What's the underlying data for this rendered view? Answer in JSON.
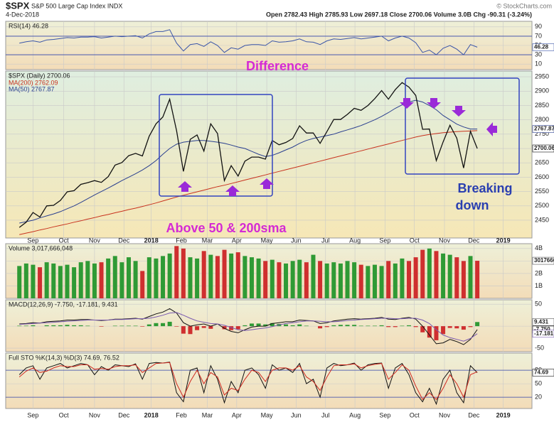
{
  "header": {
    "symbol": "$SPX",
    "name": "S&P 500 Large Cap Index INDX",
    "date": "4-Dec-2018",
    "quote": "Open 2782.43  High 2785.93  Low 2697.18  Close 2700.06  Volume 3.0B  Chg -90.31 (-3.24%)",
    "credit": "© StockCharts.com"
  },
  "chart_data": [
    {
      "type": "line",
      "title": "RSI(14) 46.28",
      "ylim": [
        -2,
        102
      ],
      "yticks": [
        10,
        30,
        50,
        70,
        90
      ],
      "bands": [
        30,
        70
      ],
      "series": [
        {
          "color": "#3a55a8",
          "last_label": "46.28",
          "values": [
            55,
            58,
            60,
            57,
            62,
            63,
            65,
            67,
            66,
            68,
            68,
            69,
            66,
            68,
            70,
            69,
            70,
            71,
            66,
            75,
            80,
            80,
            84,
            55,
            38,
            52,
            54,
            48,
            58,
            50,
            35,
            45,
            42,
            50,
            52,
            52,
            50,
            60,
            57,
            58,
            60,
            64,
            58,
            57,
            52,
            60,
            64,
            63,
            65,
            67,
            64,
            66,
            68,
            70,
            60,
            66,
            70,
            66,
            56,
            35,
            40,
            30,
            44,
            50,
            42,
            30,
            52,
            46.28
          ]
        }
      ]
    },
    {
      "type": "line",
      "title": "$SPX (Daily) 2700.06",
      "ylim": [
        2388,
        2970
      ],
      "yticks": [
        2450,
        2500,
        2550,
        2600,
        2650,
        2700,
        2750,
        2800,
        2850,
        2900,
        2950
      ],
      "xlim": [
        -2,
        75
      ],
      "xticks": [
        {
          "value": 2,
          "label": "Sep"
        },
        {
          "value": 6.5,
          "label": "Oct"
        },
        {
          "value": 11,
          "label": "Nov"
        },
        {
          "value": 15.3,
          "label": "Dec"
        },
        {
          "value": 19.3,
          "label": "2018"
        },
        {
          "value": 23.7,
          "label": "Feb"
        },
        {
          "value": 27.5,
          "label": "Mar"
        },
        {
          "value": 31.8,
          "label": "Apr"
        },
        {
          "value": 36.2,
          "label": "May"
        },
        {
          "value": 40.5,
          "label": "Jun"
        },
        {
          "value": 44.8,
          "label": "Jul"
        },
        {
          "value": 49.1,
          "label": "Aug"
        },
        {
          "value": 53.5,
          "label": "Sep"
        },
        {
          "value": 57.8,
          "label": "Oct"
        },
        {
          "value": 62.2,
          "label": "Nov"
        },
        {
          "value": 66.5,
          "label": "Dec"
        },
        {
          "value": 70.8,
          "label": "2019"
        }
      ],
      "annotations": [
        "Difference",
        "Above 50 & 200sma",
        "Breaking",
        "down"
      ],
      "series": [
        {
          "name": "MA(200) 2762.09",
          "color": "#c8321e",
          "values": [
            2400,
            2405,
            2410,
            2416,
            2421,
            2427,
            2432,
            2437,
            2443,
            2448,
            2454,
            2459,
            2465,
            2470,
            2476,
            2481,
            2487,
            2492,
            2498,
            2504,
            2510,
            2517,
            2524,
            2531,
            2537,
            2543,
            2549,
            2555,
            2561,
            2567,
            2572,
            2578,
            2584,
            2590,
            2596,
            2602,
            2608,
            2614,
            2620,
            2626,
            2632,
            2638,
            2644,
            2650,
            2656,
            2662,
            2668,
            2674,
            2680,
            2686,
            2692,
            2698,
            2704,
            2710,
            2716,
            2722,
            2728,
            2734,
            2740,
            2745,
            2749,
            2752,
            2755,
            2757,
            2759,
            2760,
            2761,
            2762.09
          ]
        },
        {
          "name": "MA(50) 2767.87",
          "color": "#2a3f8f",
          "last_label": "2767.87",
          "values": [
            2440,
            2445,
            2450,
            2458,
            2465,
            2472,
            2480,
            2490,
            2500,
            2512,
            2525,
            2538,
            2550,
            2562,
            2575,
            2588,
            2600,
            2612,
            2625,
            2640,
            2658,
            2680,
            2700,
            2715,
            2722,
            2725,
            2728,
            2728,
            2725,
            2722,
            2718,
            2712,
            2705,
            2700,
            2690,
            2680,
            2672,
            2676,
            2685,
            2695,
            2705,
            2718,
            2728,
            2735,
            2740,
            2745,
            2750,
            2758,
            2765,
            2772,
            2780,
            2790,
            2800,
            2812,
            2825,
            2840,
            2852,
            2862,
            2868,
            2862,
            2850,
            2835,
            2815,
            2800,
            2785,
            2775,
            2768,
            2767.87
          ]
        },
        {
          "color": "#111111",
          "last_label": "2700.06",
          "values": [
            2425,
            2443,
            2477,
            2461,
            2500,
            2502,
            2519,
            2549,
            2553,
            2575,
            2581,
            2588,
            2582,
            2602,
            2642,
            2651,
            2675,
            2683,
            2674,
            2743,
            2786,
            2810,
            2872,
            2762,
            2620,
            2732,
            2747,
            2691,
            2786,
            2752,
            2588,
            2640,
            2604,
            2656,
            2670,
            2670,
            2663,
            2728,
            2713,
            2721,
            2735,
            2779,
            2754,
            2754,
            2718,
            2759,
            2801,
            2801,
            2819,
            2840,
            2833,
            2850,
            2874,
            2902,
            2872,
            2905,
            2930,
            2914,
            2885,
            2767,
            2768,
            2658,
            2723,
            2781,
            2736,
            2632,
            2760,
            2700.06
          ]
        }
      ]
    },
    {
      "type": "bar",
      "title": "Volume 3,017,666,048",
      "ylim": [
        0,
        4.39
      ],
      "yticks": [
        {
          "value": 1,
          "label": "1B"
        },
        {
          "value": 2,
          "label": "2B"
        },
        {
          "value": 3,
          "label": "3B"
        },
        {
          "value": 4,
          "label": "4B"
        }
      ],
      "up_color": "#2f9a35",
      "down_color": "#cf2f2f",
      "series": [
        {
          "last_label": "3017666048",
          "values": [
            2.6,
            2.8,
            2.7,
            2.5,
            2.9,
            2.8,
            2.6,
            2.7,
            2.5,
            2.9,
            3.0,
            2.8,
            2.9,
            3.2,
            3.4,
            2.9,
            3.3,
            3.0,
            2.2,
            3.3,
            3.2,
            3.4,
            3.6,
            4.2,
            4.0,
            3.3,
            3.2,
            3.8,
            3.5,
            3.4,
            3.9,
            3.6,
            3.7,
            3.4,
            3.3,
            3.2,
            3.0,
            3.1,
            2.9,
            2.8,
            3.0,
            3.1,
            2.9,
            3.5,
            3.0,
            2.8,
            2.9,
            2.8,
            3.0,
            2.9,
            2.7,
            2.6,
            2.7,
            2.6,
            3.0,
            2.8,
            3.2,
            3.0,
            3.3,
            3.9,
            4.0,
            3.8,
            3.6,
            3.5,
            3.3,
            3.0,
            3.4,
            3.017666048
          ]
        }
      ]
    },
    {
      "type": "line",
      "title": "MACD(12,26,9) -7.750, -17.181, 9.431",
      "ylim": [
        -58,
        60
      ],
      "yticks": [
        -50,
        0,
        50
      ],
      "up_color": "#2f9a35",
      "down_color": "#cf2f2f",
      "series": [
        {
          "kind": "histogram",
          "last_label": "9.431",
          "values": [
            1,
            1,
            2,
            0,
            2,
            2,
            2,
            3,
            2,
            2,
            1,
            0,
            -1,
            0,
            1,
            1,
            1,
            1,
            -1,
            4,
            7,
            7,
            10,
            -1,
            -17,
            -18,
            -9,
            -4,
            -6,
            0,
            -7,
            -9,
            -7,
            2,
            6,
            6,
            4,
            7,
            5,
            4,
            2,
            4,
            1,
            0,
            -5,
            -2,
            2,
            3,
            3,
            3,
            1,
            1,
            1,
            2,
            -2,
            -2,
            1,
            2,
            -2,
            -14,
            -26,
            -32,
            -18,
            -4,
            -5,
            -8,
            -2,
            9.431
          ]
        },
        {
          "color": "#111111",
          "last_label": "-7.750",
          "values": [
            5,
            6,
            8,
            7,
            10,
            11,
            12,
            14,
            14,
            15,
            15,
            14,
            13,
            14,
            16,
            16,
            17,
            18,
            16,
            22,
            28,
            32,
            40,
            30,
            8,
            0,
            3,
            5,
            0,
            5,
            -5,
            -12,
            -15,
            -8,
            -2,
            0,
            0,
            6,
            8,
            10,
            10,
            14,
            13,
            12,
            6,
            8,
            12,
            14,
            16,
            17,
            16,
            17,
            18,
            20,
            16,
            15,
            18,
            20,
            16,
            0,
            -20,
            -40,
            -38,
            -30,
            -35,
            -42,
            -30,
            -7.75
          ]
        },
        {
          "color": "#7a5ab0",
          "last_label": "-17.181",
          "values": [
            4,
            5,
            6,
            7,
            8,
            9,
            10,
            11,
            12,
            13,
            14,
            14,
            14,
            14,
            15,
            15,
            16,
            17,
            17,
            18,
            21,
            25,
            30,
            31,
            25,
            18,
            12,
            9,
            6,
            5,
            2,
            -3,
            -8,
            -10,
            -8,
            -6,
            -4,
            -1,
            3,
            6,
            8,
            10,
            12,
            12,
            11,
            10,
            10,
            11,
            13,
            14,
            15,
            16,
            17,
            18,
            18,
            17,
            17,
            18,
            18,
            14,
            6,
            -8,
            -20,
            -26,
            -30,
            -34,
            -28,
            -17.181
          ]
        }
      ]
    },
    {
      "type": "line",
      "title": "Full STO %K(14,3) %D(3) 74.69, 76.52",
      "ylim": [
        -5,
        118
      ],
      "yticks": [
        20,
        50,
        80
      ],
      "bands": [
        20,
        80
      ],
      "series": [
        {
          "color": "#111111",
          "last_label": "74.69",
          "values": [
            70,
            85,
            90,
            60,
            85,
            90,
            95,
            85,
            90,
            95,
            92,
            70,
            88,
            80,
            92,
            90,
            88,
            94,
            60,
            95,
            97,
            96,
            98,
            30,
            10,
            80,
            85,
            30,
            90,
            60,
            8,
            55,
            30,
            80,
            85,
            70,
            40,
            92,
            80,
            85,
            75,
            95,
            50,
            60,
            20,
            85,
            95,
            90,
            92,
            96,
            80,
            92,
            95,
            96,
            40,
            85,
            95,
            70,
            30,
            10,
            40,
            5,
            60,
            80,
            30,
            8,
            90,
            74.69
          ]
        },
        {
          "color": "#d0281e",
          "values": [
            65,
            78,
            85,
            75,
            78,
            85,
            90,
            88,
            88,
            92,
            92,
            82,
            84,
            82,
            88,
            90,
            90,
            92,
            75,
            85,
            95,
            96,
            97,
            50,
            20,
            55,
            80,
            50,
            75,
            65,
            25,
            40,
            35,
            60,
            80,
            75,
            55,
            80,
            85,
            85,
            80,
            90,
            65,
            55,
            35,
            65,
            90,
            92,
            92,
            94,
            85,
            90,
            93,
            95,
            60,
            75,
            92,
            80,
            45,
            15,
            30,
            15,
            40,
            70,
            50,
            20,
            70,
            76.52
          ]
        }
      ]
    }
  ]
}
